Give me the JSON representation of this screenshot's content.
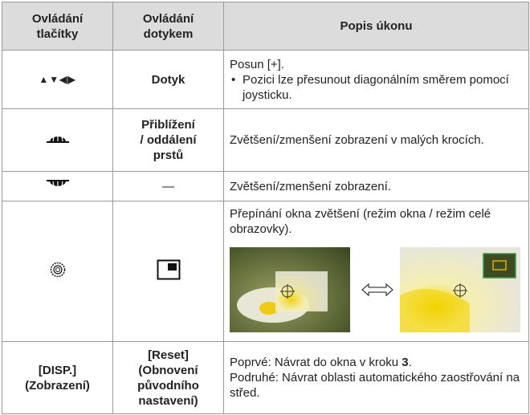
{
  "table": {
    "header": [
      [
        "Ovládání",
        "tlačítky"
      ],
      [
        "Ovládání",
        "dotykem"
      ],
      [
        "Popis úkonu"
      ]
    ],
    "rows": [
      {
        "button": [
          "▲▼◀▶"
        ],
        "touch": [
          "Dotyk"
        ],
        "desc": "Posun [+].",
        "bullet": "Pozici lze přesunout diagonálním směrem pomocí joysticku."
      },
      {
        "touch": [
          "Přiblížení",
          "/ oddálení",
          "prstů"
        ],
        "desc": "Zvětšení/zmenšení zobrazení v malých krocích."
      },
      {
        "touch": [
          "—"
        ],
        "desc": "Zvětšení/zmenšení zobrazení."
      },
      {
        "desc": "Přepínání okna zvětšení (režim okna / režim celé obrazovky)."
      },
      {
        "button": [
          "[DISP.]",
          "(Zobrazení)"
        ],
        "touch": [
          "[Reset]",
          "(Obnovení",
          "původního",
          "nastavení)"
        ],
        "desc_parts": [
          "Poprvé: Návrat do okna v kroku ",
          "3",
          "."
        ],
        "desc2": "Podruhé: Návrat oblasti automatického zaostřování na střed."
      }
    ]
  }
}
